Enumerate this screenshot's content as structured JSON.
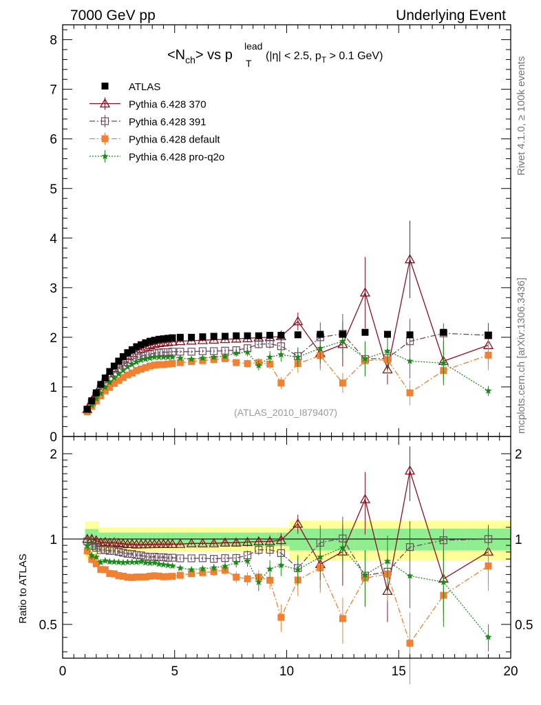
{
  "header": {
    "left": "7000 GeV pp",
    "right": "Underlying Event"
  },
  "side_labels": {
    "rivet": "Rivet 4.1.0, ≥ 100k events",
    "mcplots": "mcplots.cern.ch [arXiv:1306.3436]"
  },
  "chart_data": {
    "type": "scatter",
    "title": "<N_ch> vs p_T^lead (|η| < 2.5, p_T > 0.1 GeV)",
    "title_parts": {
      "lhs": "<N",
      "lhs_sub": "ch",
      "mid": "> vs p",
      "sup": "lead",
      "sub": "T",
      "cut_a": "(|η| < 2.5, p",
      "cut_sub": "T",
      "cut_b": " > 0.1 GeV)"
    },
    "reference": "(ATLAS_2010_I879407)",
    "xlabel": "",
    "ylabel_main": "",
    "ylabel_ratio": "Ratio to ATLAS",
    "xlim": [
      0,
      20
    ],
    "ylim_main": [
      0,
      8.3
    ],
    "ylim_ratio": [
      0.38,
      2.3
    ],
    "x_ticks": [
      "0",
      "5",
      "10",
      "15",
      "20"
    ],
    "y_ticks_main": [
      "0",
      "1",
      "2",
      "3",
      "4",
      "5",
      "6",
      "7",
      "8"
    ],
    "y_ticks_ratio": [
      "0.5",
      "1",
      "2"
    ],
    "x": [
      1.1,
      1.3,
      1.5,
      1.7,
      1.9,
      2.1,
      2.3,
      2.5,
      2.7,
      2.9,
      3.1,
      3.3,
      3.5,
      3.7,
      3.9,
      4.1,
      4.3,
      4.5,
      4.7,
      4.9,
      5.25,
      5.75,
      6.25,
      6.75,
      7.25,
      7.75,
      8.25,
      8.75,
      9.25,
      9.75,
      10.5,
      11.5,
      12.5,
      13.5,
      14.5,
      15.5,
      17.0,
      19.0
    ],
    "series": [
      {
        "name": "ATLAS",
        "color": "#000000",
        "marker": "square",
        "values": [
          0.55,
          0.72,
          0.88,
          1.05,
          1.18,
          1.31,
          1.42,
          1.52,
          1.61,
          1.69,
          1.75,
          1.81,
          1.85,
          1.89,
          1.92,
          1.94,
          1.96,
          1.97,
          1.98,
          1.99,
          2.0,
          2.0,
          2.01,
          2.02,
          2.02,
          2.03,
          2.03,
          2.03,
          2.04,
          2.04,
          2.05,
          2.06,
          2.06,
          2.1,
          2.06,
          2.05,
          2.1,
          2.04
        ],
        "band_rel": 0.07
      },
      {
        "name": "Pythia 6.428 370",
        "color": "#8b0e1e",
        "marker": "triangle",
        "dash": "",
        "values": [
          0.55,
          0.72,
          0.87,
          1.02,
          1.15,
          1.27,
          1.38,
          1.47,
          1.55,
          1.62,
          1.68,
          1.73,
          1.77,
          1.81,
          1.84,
          1.86,
          1.88,
          1.89,
          1.9,
          1.91,
          1.92,
          1.93,
          1.94,
          1.95,
          1.96,
          1.97,
          1.98,
          1.99,
          2.0,
          2.02,
          2.32,
          1.68,
          1.86,
          2.9,
          1.35,
          3.57,
          1.52,
          1.84
        ],
        "errors": [
          0.02,
          0.02,
          0.02,
          0.02,
          0.02,
          0.02,
          0.02,
          0.02,
          0.02,
          0.02,
          0.02,
          0.02,
          0.02,
          0.02,
          0.02,
          0.02,
          0.02,
          0.02,
          0.02,
          0.02,
          0.03,
          0.03,
          0.03,
          0.04,
          0.05,
          0.06,
          0.07,
          0.08,
          0.1,
          0.12,
          0.18,
          0.3,
          0.45,
          0.72,
          0.3,
          0.78,
          0.38,
          0.42
        ]
      },
      {
        "name": "Pythia 6.428 391",
        "color": "#6a4a5a",
        "marker": "open-square",
        "dash": "8,3,2,3",
        "values": [
          0.54,
          0.68,
          0.82,
          0.96,
          1.08,
          1.19,
          1.29,
          1.37,
          1.44,
          1.5,
          1.55,
          1.59,
          1.62,
          1.64,
          1.66,
          1.68,
          1.69,
          1.7,
          1.7,
          1.71,
          1.71,
          1.71,
          1.72,
          1.72,
          1.73,
          1.74,
          1.78,
          1.86,
          1.87,
          1.82,
          1.62,
          2.0,
          2.07,
          1.56,
          1.58,
          1.92,
          2.08,
          2.04
        ],
        "errors": [
          0.02,
          0.02,
          0.02,
          0.02,
          0.02,
          0.02,
          0.02,
          0.02,
          0.02,
          0.02,
          0.02,
          0.02,
          0.02,
          0.02,
          0.02,
          0.02,
          0.02,
          0.02,
          0.02,
          0.02,
          0.03,
          0.03,
          0.03,
          0.04,
          0.05,
          0.06,
          0.07,
          0.08,
          0.1,
          0.12,
          0.15,
          0.3,
          0.4,
          0.35,
          0.35,
          0.45,
          0.2,
          0.25
        ]
      },
      {
        "name": "Pythia 6.428 default",
        "color": "#f08032",
        "marker": "square",
        "dash": "8,3,2,3",
        "values": [
          0.5,
          0.61,
          0.72,
          0.82,
          0.92,
          0.99,
          1.07,
          1.13,
          1.19,
          1.24,
          1.28,
          1.33,
          1.36,
          1.39,
          1.42,
          1.44,
          1.45,
          1.45,
          1.46,
          1.47,
          1.49,
          1.51,
          1.53,
          1.55,
          1.57,
          1.49,
          1.47,
          1.49,
          1.46,
          1.08,
          1.47,
          1.63,
          1.08,
          1.53,
          1.55,
          0.88,
          1.33,
          1.64
        ],
        "errors": [
          0.02,
          0.02,
          0.02,
          0.02,
          0.02,
          0.02,
          0.02,
          0.02,
          0.02,
          0.02,
          0.02,
          0.02,
          0.02,
          0.02,
          0.02,
          0.02,
          0.02,
          0.02,
          0.02,
          0.02,
          0.03,
          0.03,
          0.04,
          0.05,
          0.06,
          0.07,
          0.08,
          0.09,
          0.1,
          0.12,
          0.18,
          0.3,
          0.2,
          0.3,
          0.3,
          0.25,
          0.25,
          0.3
        ]
      },
      {
        "name": "Pythia 6.428 pro-q2o",
        "color": "#1a8a1a",
        "marker": "star",
        "dash": "2,2",
        "values": [
          0.52,
          0.63,
          0.76,
          0.87,
          0.99,
          1.09,
          1.18,
          1.26,
          1.33,
          1.4,
          1.45,
          1.5,
          1.54,
          1.56,
          1.58,
          1.6,
          1.6,
          1.6,
          1.6,
          1.6,
          1.58,
          1.56,
          1.58,
          1.6,
          1.62,
          1.68,
          1.7,
          1.43,
          1.6,
          1.65,
          1.6,
          1.78,
          1.92,
          1.57,
          1.72,
          1.52,
          1.48,
          0.92
        ],
        "errors": [
          0.02,
          0.02,
          0.02,
          0.02,
          0.02,
          0.02,
          0.02,
          0.02,
          0.02,
          0.02,
          0.02,
          0.02,
          0.02,
          0.02,
          0.02,
          0.02,
          0.02,
          0.02,
          0.02,
          0.02,
          0.03,
          0.03,
          0.04,
          0.05,
          0.06,
          0.07,
          0.08,
          0.1,
          0.12,
          0.14,
          0.2,
          0.3,
          0.3,
          0.35,
          0.4,
          0.35,
          0.45,
          0.1
        ]
      }
    ],
    "legend_position": "top-left"
  }
}
